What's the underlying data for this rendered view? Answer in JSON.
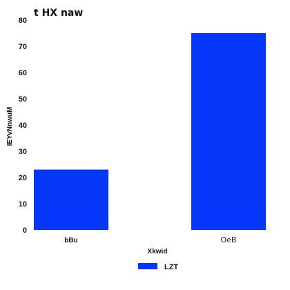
{
  "chart_data": {
    "type": "bar",
    "title": "t HX naw",
    "xlabel": "Xkwid",
    "ylabel": "IEYvNnwuM",
    "categories": [
      "bBu",
      "OeB"
    ],
    "series": [
      {
        "name": "LZT",
        "values": [
          23,
          75
        ],
        "color": "#0437fa"
      }
    ],
    "ylim": [
      0,
      80
    ],
    "yticks": [
      0,
      10,
      20,
      30,
      40,
      50,
      60,
      70,
      80
    ],
    "grid": false,
    "legend": "bottom-center"
  }
}
